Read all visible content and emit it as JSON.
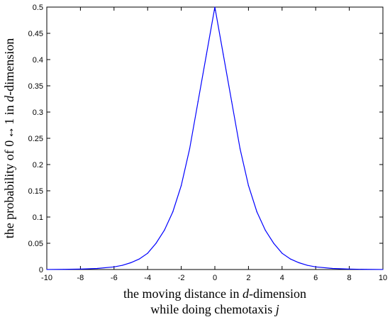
{
  "chart_data": {
    "type": "line",
    "title": "",
    "xlabel_line1": "the moving distance in d-dimension",
    "xlabel_line1_pre": "the moving distance in ",
    "xlabel_line1_italic": "d",
    "xlabel_line1_post": "-dimension",
    "xlabel_line2_pre": "while doing chemotaxis ",
    "xlabel_line2_italic": "j",
    "ylabel_pre": "the probability of 0",
    "ylabel_arrow": "↔",
    "ylabel_mid": "1  in ",
    "ylabel_italic": "d",
    "ylabel_post": "-dimension",
    "xlim": [
      -10,
      10
    ],
    "ylim": [
      0,
      0.5
    ],
    "x_ticks": [
      -10,
      -8,
      -6,
      -4,
      -2,
      0,
      2,
      4,
      6,
      8,
      10
    ],
    "x_tick_labels": [
      "-10",
      "-8",
      "-6",
      "-4",
      "-2",
      "0",
      "2",
      "4",
      "6",
      "8",
      "10"
    ],
    "y_ticks": [
      0,
      0.05,
      0.1,
      0.15,
      0.2,
      0.25,
      0.3,
      0.35,
      0.4,
      0.45,
      0.5
    ],
    "y_tick_labels": [
      "0",
      "0.05",
      "0.1",
      "0.15",
      "0.2",
      "0.25",
      "0.3",
      "0.35",
      "0.4",
      "0.45",
      "0.5"
    ],
    "grid": false,
    "line_color": "#0000ff",
    "series": [
      {
        "x": [
          -10,
          -9,
          -8,
          -7,
          -6,
          -5.5,
          -5,
          -4.5,
          -4,
          -3.5,
          -3,
          -2.5,
          -2,
          -1.5,
          -1,
          -0.5,
          0,
          0.5,
          1,
          1.5,
          2,
          2.5,
          3,
          3.5,
          4,
          4.5,
          5,
          5.5,
          6,
          7,
          8,
          9,
          10
        ],
        "y": [
          0.0001,
          0.0003,
          0.0008,
          0.002,
          0.005,
          0.008,
          0.013,
          0.02,
          0.031,
          0.05,
          0.075,
          0.11,
          0.16,
          0.23,
          0.32,
          0.41,
          0.5,
          0.41,
          0.32,
          0.23,
          0.16,
          0.11,
          0.075,
          0.05,
          0.031,
          0.02,
          0.013,
          0.008,
          0.005,
          0.002,
          0.0008,
          0.0003,
          0.0001
        ]
      }
    ]
  }
}
